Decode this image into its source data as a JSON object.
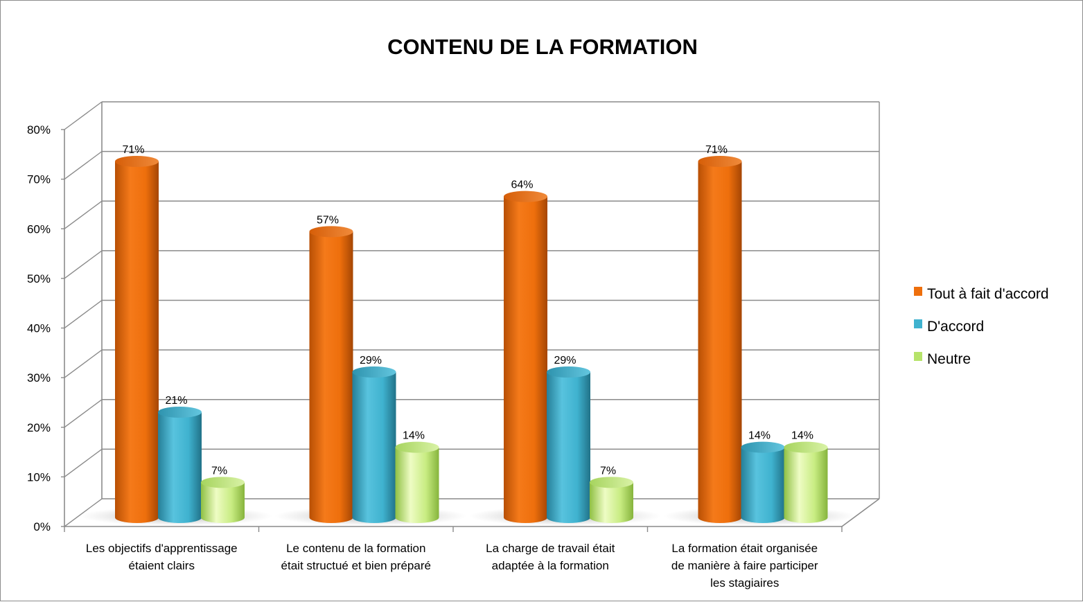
{
  "chart_data": {
    "type": "bar",
    "title": "CONTENU DE LA FORMATION",
    "categories": [
      [
        "Les objectifs d'apprentissage",
        "étaient clairs"
      ],
      [
        "Le contenu de la formation",
        "était structué et bien préparé"
      ],
      [
        "La charge de travail était",
        "adaptée à la formation"
      ],
      [
        "La formation était organisée",
        "de manière à faire participer",
        "les stagiaires"
      ]
    ],
    "series": [
      {
        "name": "Tout à fait d'accord",
        "values": [
          71,
          57,
          64,
          71
        ],
        "labels": [
          "71%",
          "57%",
          "64%",
          "71%"
        ],
        "color": "#ee6f0c"
      },
      {
        "name": "D'accord",
        "values": [
          21,
          29,
          29,
          14
        ],
        "labels": [
          "21%",
          "29%",
          "29%",
          "14%"
        ],
        "color": "#3fb2cf"
      },
      {
        "name": "Neutre",
        "values": [
          7,
          14,
          7,
          14
        ],
        "labels": [
          "7%",
          "14%",
          "7%",
          "14%"
        ],
        "color": "#b6e36a"
      }
    ],
    "yticks": [
      0,
      10,
      20,
      30,
      40,
      50,
      60,
      70,
      80
    ],
    "ytick_labels": [
      "0%",
      "10%",
      "20%",
      "30%",
      "40%",
      "50%",
      "60%",
      "70%",
      "80%"
    ],
    "ylim": [
      0,
      80
    ],
    "grid": true,
    "legend": "right",
    "style": "3d-cylinder"
  }
}
